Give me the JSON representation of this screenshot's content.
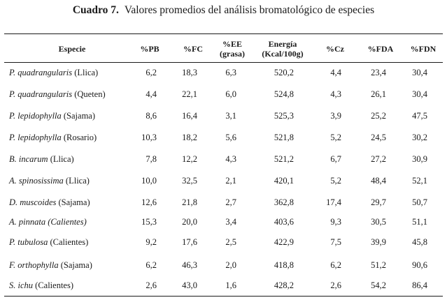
{
  "caption": {
    "label": "Cuadro 7.",
    "title": "Valores promedios del análisis bromatológico de especies"
  },
  "table": {
    "headers": [
      "Especie",
      "%PB",
      "%FC",
      "%EE\n(grasa)",
      "Energía\n(Kcal/100g)",
      "%Cz",
      "%FDA",
      "%FDN"
    ],
    "rows": [
      {
        "name": "P. quadrangularis",
        "place": "(Llica)",
        "values": [
          "6,2",
          "18,3",
          "6,3",
          "520,2",
          "4,4",
          "23,4",
          "30,4"
        ]
      },
      {
        "name": "P. quadrangularis",
        "place": "(Queten)",
        "values": [
          "4,4",
          "22,1",
          "6,0",
          "524,8",
          "4,3",
          "26,1",
          "30,4"
        ]
      },
      {
        "name": "P. lepidophylla",
        "place": "(Sajama)",
        "values": [
          "8,6",
          "16,4",
          "3,1",
          "525,3",
          "3,9",
          "25,2",
          "47,5"
        ]
      },
      {
        "name": "P. lepidophylla",
        "place": "(Rosario)",
        "values": [
          "10,3",
          "18,2",
          "5,6",
          "521,8",
          "5,2",
          "24,5",
          "30,2"
        ]
      },
      {
        "name": "B. incarum",
        "place": "(Llica)",
        "values": [
          "7,8",
          "12,2",
          "4,3",
          "521,2",
          "6,7",
          "27,2",
          "30,9"
        ]
      },
      {
        "name": "A. spinosissima",
        "place": "(Llica)",
        "values": [
          "10,0",
          "32,5",
          "2,1",
          "420,1",
          "5,2",
          "48,4",
          "52,1"
        ]
      },
      {
        "name": "D. muscoides",
        "place": "(Sajama)",
        "values": [
          "12,6",
          "21,8",
          "2,7",
          "362,8",
          "17,4",
          "29,7",
          "50,7"
        ]
      },
      {
        "name": "A. pinnata (Calientes)",
        "place": "",
        "values": [
          "15,3",
          "20,0",
          "3,4",
          "403,6",
          "9,3",
          "30,5",
          "51,1"
        ]
      },
      {
        "name": "P. tubulosa",
        "place": "(Calientes)",
        "values": [
          "9,2",
          "17,6",
          "2,5",
          "422,9",
          "7,5",
          "39,9",
          "45,8"
        ]
      },
      {
        "name": "F. orthophylla",
        "place": "(Sajama)",
        "values": [
          "6,2",
          "46,3",
          "2,0",
          "418,8",
          "6,2",
          "51,2",
          "90,6"
        ]
      },
      {
        "name": "S. ichu",
        "place": "(Calientes)",
        "values": [
          "2,6",
          "43,0",
          "1,6",
          "428,2",
          "2,6",
          "54,2",
          "86,4"
        ]
      }
    ]
  }
}
